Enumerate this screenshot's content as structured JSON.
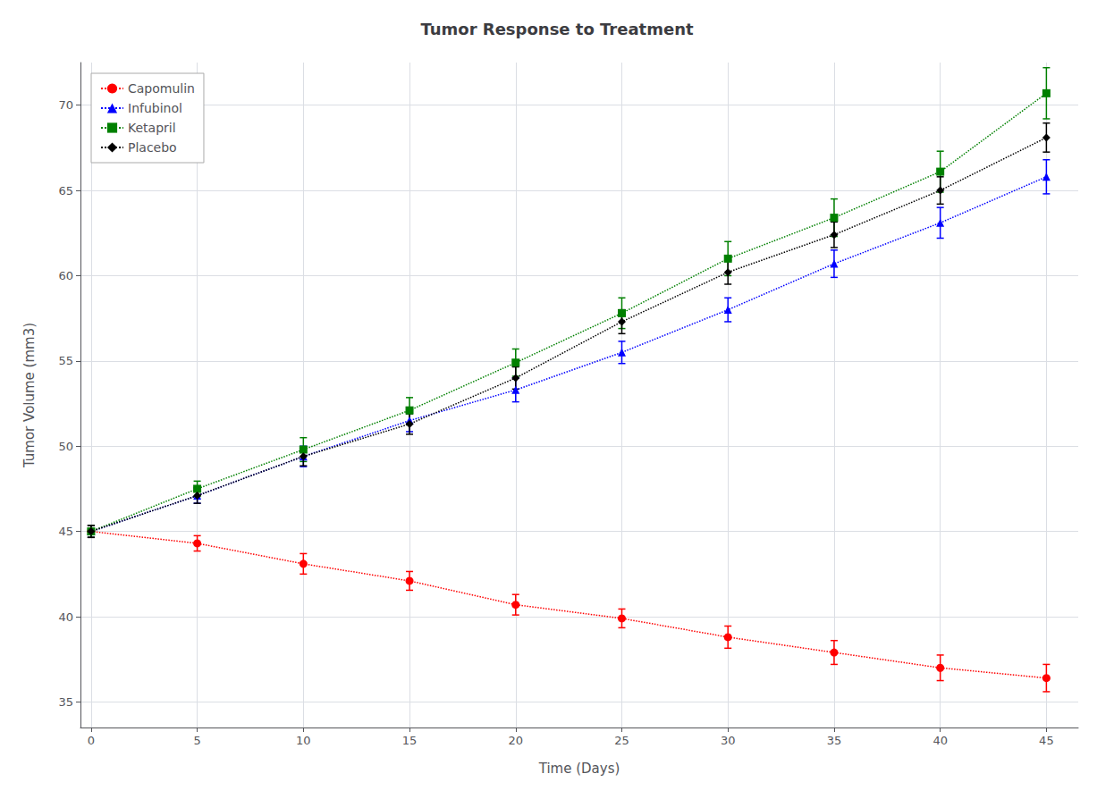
{
  "chart_data": {
    "type": "line",
    "title": "Tumor Response to Treatment",
    "xlabel": "Time (Days)",
    "ylabel": "Tumor Volume (mm3)",
    "x": [
      0,
      5,
      10,
      15,
      20,
      25,
      30,
      35,
      40,
      45
    ],
    "series": [
      {
        "name": "Capomulin",
        "color": "red",
        "marker": "o",
        "line_style": "dotted",
        "values": [
          45.0,
          44.3,
          43.1,
          42.1,
          40.7,
          39.9,
          38.8,
          37.9,
          37.0,
          36.4
        ],
        "yerr": [
          0.35,
          0.45,
          0.6,
          0.55,
          0.6,
          0.55,
          0.65,
          0.7,
          0.75,
          0.8
        ]
      },
      {
        "name": "Infubinol",
        "color": "blue",
        "marker": "^",
        "line_style": "dotted",
        "values": [
          45.0,
          47.1,
          49.4,
          51.5,
          53.3,
          55.5,
          58.0,
          60.7,
          63.1,
          65.8
        ],
        "yerr": [
          0.35,
          0.45,
          0.6,
          0.65,
          0.7,
          0.65,
          0.7,
          0.8,
          0.9,
          1.0
        ]
      },
      {
        "name": "Ketapril",
        "color": "green",
        "marker": "s",
        "line_style": "dotted",
        "values": [
          45.0,
          47.5,
          49.8,
          52.1,
          54.9,
          57.8,
          61.0,
          63.4,
          66.1,
          70.7
        ],
        "yerr": [
          0.35,
          0.45,
          0.7,
          0.75,
          0.8,
          0.9,
          1.0,
          1.1,
          1.2,
          1.5
        ]
      },
      {
        "name": "Placebo",
        "color": "black",
        "marker": "D",
        "line_style": "dotted",
        "values": [
          45.0,
          47.1,
          49.4,
          51.3,
          54.0,
          57.3,
          60.2,
          62.4,
          65.0,
          68.1
        ],
        "yerr": [
          0.35,
          0.45,
          0.55,
          0.6,
          0.65,
          0.7,
          0.7,
          0.75,
          0.8,
          0.85
        ]
      }
    ],
    "xlim": [
      -0.5,
      46.5
    ],
    "ylim": [
      33.5,
      72.5
    ],
    "xticks": [
      0,
      5,
      10,
      15,
      20,
      25,
      30,
      35,
      40,
      45
    ],
    "yticks": [
      35,
      40,
      45,
      50,
      55,
      60,
      65,
      70
    ],
    "grid": true,
    "legend": "upper left"
  }
}
